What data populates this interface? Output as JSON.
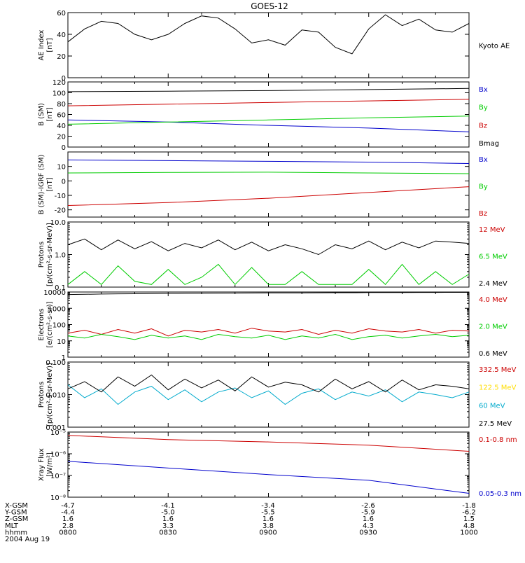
{
  "title": "GOES-12",
  "footer": {
    "rows": [
      {
        "label": "X-GSM",
        "values": [
          "-4.7",
          "-4.1",
          "-3.4",
          "-2.6",
          "-1.8"
        ]
      },
      {
        "label": "Y-GSM",
        "values": [
          "-4.4",
          "-5.0",
          "-5.5",
          "-5.9",
          "-6.2"
        ]
      },
      {
        "label": "Z-GSM",
        "values": [
          "1.6",
          "1.6",
          "1.6",
          "1.6",
          "1.5"
        ]
      },
      {
        "label": "MLT",
        "values": [
          "2.8",
          "3.3",
          "3.8",
          "4.3",
          "4.8"
        ]
      },
      {
        "label": "hhmm",
        "values": [
          "0800",
          "0830",
          "0900",
          "0930",
          "1000"
        ]
      }
    ],
    "date": "2004 Aug 19"
  },
  "colors": {
    "black": "#000000",
    "red": "#cc0000",
    "green": "#00cc00",
    "blue": "#0000cc",
    "cyan": "#00aacc",
    "yellow": "#ffdd00"
  },
  "chart_data": [
    {
      "id": "ae",
      "type": "line",
      "ylabel": [
        "AE Index",
        "[nT]"
      ],
      "ylim": [
        0,
        60
      ],
      "yticks": [
        {
          "v": 0,
          "t": "0"
        },
        {
          "v": 20,
          "t": "20"
        },
        {
          "v": 40,
          "t": "40"
        },
        {
          "v": 60,
          "t": "60"
        }
      ],
      "x": [
        0,
        5,
        10,
        15,
        20,
        25,
        30,
        35,
        40,
        45,
        50,
        55,
        60,
        65,
        70,
        75,
        80,
        85,
        90,
        95,
        100,
        105,
        110,
        115,
        120
      ],
      "series": [
        {
          "name": "Kyoto AE",
          "color": "black",
          "label_color": "black",
          "values": [
            33,
            45,
            52,
            50,
            40,
            35,
            40,
            50,
            57,
            55,
            45,
            32,
            35,
            30,
            44,
            42,
            28,
            22,
            45,
            58,
            48,
            54,
            44,
            42,
            50
          ]
        }
      ]
    },
    {
      "id": "bsm",
      "type": "line",
      "ylabel": [
        "B (SM)",
        "[nT]"
      ],
      "ylim": [
        0,
        120
      ],
      "yticks": [
        {
          "v": 0,
          "t": "0"
        },
        {
          "v": 20,
          "t": "20"
        },
        {
          "v": 40,
          "t": "40"
        },
        {
          "v": 60,
          "t": "60"
        },
        {
          "v": 80,
          "t": "80"
        },
        {
          "v": 100,
          "t": "100"
        },
        {
          "v": 120,
          "t": "120"
        }
      ],
      "x": [
        0,
        30,
        60,
        90,
        120
      ],
      "series": [
        {
          "name": "Bx",
          "color": "blue",
          "label_color": "blue",
          "values": [
            50,
            46,
            40,
            35,
            28
          ]
        },
        {
          "name": "By",
          "color": "green",
          "label_color": "green",
          "values": [
            42,
            46,
            50,
            54,
            57
          ]
        },
        {
          "name": "Bz",
          "color": "red",
          "label_color": "red",
          "values": [
            76,
            79,
            82,
            85,
            88
          ]
        },
        {
          "name": "Bmag",
          "color": "black",
          "label_color": "black",
          "values": [
            102,
            103,
            104,
            106,
            108
          ]
        }
      ]
    },
    {
      "id": "bigrf",
      "type": "line",
      "ylabel": [
        "B (SM)-IGRF (SM)",
        "[nT]"
      ],
      "ylim": [
        -25,
        20
      ],
      "yticks": [
        {
          "v": -20,
          "t": "-20"
        },
        {
          "v": -10,
          "t": "-10"
        },
        {
          "v": 0,
          "t": "0"
        },
        {
          "v": 10,
          "t": "10"
        }
      ],
      "x": [
        0,
        30,
        60,
        90,
        120
      ],
      "series": [
        {
          "name": "Bx",
          "color": "blue",
          "label_color": "blue",
          "values": [
            14.5,
            14,
            13.5,
            13,
            12
          ]
        },
        {
          "name": "By",
          "color": "green",
          "label_color": "green",
          "values": [
            5.5,
            5.8,
            6,
            5.5,
            5
          ]
        },
        {
          "name": "Bz",
          "color": "red",
          "label_color": "red",
          "values": [
            -17,
            -15,
            -12,
            -8,
            -4
          ]
        }
      ]
    },
    {
      "id": "protons1",
      "type": "line",
      "log": true,
      "ylabel": [
        "Protons",
        "[p/(cm²-s-sr-MeV)]"
      ],
      "ylim": [
        0.1,
        10
      ],
      "yticks": [
        {
          "v": 0.1,
          "t": "0.1"
        },
        {
          "v": 1,
          "t": "1.0"
        },
        {
          "v": 10,
          "t": "10.0"
        }
      ],
      "x": [
        0,
        5,
        10,
        15,
        20,
        25,
        30,
        35,
        40,
        45,
        50,
        55,
        60,
        65,
        70,
        75,
        80,
        85,
        90,
        95,
        100,
        105,
        110,
        115,
        120
      ],
      "series": [
        {
          "name": "12 MeV",
          "color": "red",
          "label_color": "red",
          "values": [
            null,
            null,
            null,
            null,
            null,
            null,
            null,
            null,
            null,
            null,
            null,
            null,
            null,
            null,
            null,
            null,
            null,
            null,
            null,
            null,
            null,
            null,
            null,
            null,
            null
          ]
        },
        {
          "name": "6.5 MeV",
          "color": "green",
          "label_color": "green",
          "values": [
            0.12,
            0.3,
            0.12,
            0.45,
            0.15,
            0.12,
            0.35,
            0.12,
            0.2,
            0.5,
            0.12,
            0.4,
            0.12,
            0.12,
            0.3,
            0.12,
            0.12,
            0.12,
            0.35,
            0.12,
            0.5,
            0.12,
            0.3,
            0.12,
            0.25
          ]
        },
        {
          "name": "2.4 MeV",
          "color": "black",
          "label_color": "black",
          "values": [
            2.0,
            3.0,
            1.4,
            2.8,
            1.5,
            2.5,
            1.3,
            2.2,
            1.6,
            2.8,
            1.4,
            2.4,
            1.3,
            2.0,
            1.5,
            1.0,
            2.0,
            1.5,
            2.6,
            1.4,
            2.4,
            1.6,
            2.6,
            2.4,
            2.2
          ]
        }
      ]
    },
    {
      "id": "electrons",
      "type": "line",
      "log": true,
      "ylabel": [
        "Electrons",
        "[e/(cm²-s-sr)]"
      ],
      "ylim": [
        1,
        10000
      ],
      "yticks": [
        {
          "v": 1,
          "t": "1"
        },
        {
          "v": 10,
          "t": "10"
        },
        {
          "v": 100,
          "t": "100"
        },
        {
          "v": 1000,
          "t": "1000"
        },
        {
          "v": 10000,
          "t": "10000"
        }
      ],
      "x": [
        0,
        5,
        10,
        15,
        20,
        25,
        30,
        35,
        40,
        45,
        50,
        55,
        60,
        65,
        70,
        75,
        80,
        85,
        90,
        95,
        100,
        105,
        110,
        115,
        120
      ],
      "series": [
        {
          "name": "4.0 MeV",
          "color": "red",
          "label_color": "red",
          "values": [
            30,
            45,
            25,
            50,
            30,
            55,
            20,
            45,
            35,
            50,
            30,
            60,
            40,
            35,
            50,
            25,
            45,
            30,
            55,
            40,
            35,
            50,
            30,
            45,
            40
          ]
        },
        {
          "name": "2.0 MeV",
          "color": "green",
          "label_color": "green",
          "values": [
            20,
            15,
            25,
            18,
            12,
            22,
            15,
            20,
            12,
            25,
            18,
            15,
            22,
            12,
            20,
            15,
            25,
            12,
            18,
            22,
            15,
            20,
            25,
            18,
            22
          ]
        },
        {
          "name": "0.6 MeV",
          "color": "black",
          "label_color": "black",
          "values": [
            7000,
            7200,
            7500,
            7700,
            7800,
            8000,
            8200,
            8300,
            8400,
            8500,
            8600,
            8700,
            8800,
            8800,
            8900,
            9000,
            9100,
            9100,
            9200,
            9300,
            9300,
            9400,
            9400,
            9500,
            9500
          ]
        }
      ]
    },
    {
      "id": "protons2",
      "type": "line",
      "log": true,
      "ylabel": [
        "Protons",
        "[p/(cm²-s-sr-MeV)]"
      ],
      "ylim": [
        0.001,
        0.1
      ],
      "yticks": [
        {
          "v": 0.001,
          "t": "0.001"
        },
        {
          "v": 0.01,
          "t": "0.010"
        },
        {
          "v": 0.1,
          "t": "0.100"
        }
      ],
      "x": [
        0,
        5,
        10,
        15,
        20,
        25,
        30,
        35,
        40,
        45,
        50,
        55,
        60,
        65,
        70,
        75,
        80,
        85,
        90,
        95,
        100,
        105,
        110,
        115,
        120
      ],
      "series": [
        {
          "name": "332.5 MeV",
          "color": "red",
          "label_color": "red",
          "values": [
            null,
            null,
            null,
            null,
            null,
            null,
            null,
            null,
            null,
            null,
            null,
            null,
            null,
            null,
            null,
            null,
            null,
            null,
            null,
            null,
            null,
            null,
            null,
            null,
            null
          ]
        },
        {
          "name": "122.5 MeV",
          "color": "yellow",
          "label_color": "yellow",
          "values": [
            null,
            null,
            null,
            null,
            null,
            null,
            null,
            null,
            null,
            null,
            null,
            null,
            null,
            null,
            null,
            null,
            null,
            null,
            null,
            null,
            null,
            null,
            null,
            null,
            null
          ]
        },
        {
          "name": "60 MeV",
          "color": "cyan",
          "label_color": "cyan",
          "values": [
            0.02,
            0.008,
            0.015,
            0.005,
            0.012,
            0.018,
            0.007,
            0.014,
            0.006,
            0.012,
            0.016,
            0.008,
            0.013,
            0.005,
            0.011,
            0.015,
            0.007,
            0.012,
            0.009,
            0.014,
            0.006,
            0.012,
            0.01,
            0.008,
            0.012
          ]
        },
        {
          "name": "27.5 MeV",
          "color": "black",
          "label_color": "black",
          "values": [
            0.015,
            0.025,
            0.012,
            0.035,
            0.018,
            0.04,
            0.014,
            0.03,
            0.016,
            0.028,
            0.013,
            0.035,
            0.017,
            0.024,
            0.02,
            0.012,
            0.03,
            0.015,
            0.025,
            0.012,
            0.028,
            0.014,
            0.02,
            0.018,
            0.015
          ]
        }
      ]
    },
    {
      "id": "xray",
      "type": "line",
      "log": true,
      "ylabel": [
        "Xray  Flux",
        "[W/m²]"
      ],
      "ylim": [
        1e-08,
        1e-05
      ],
      "yticks": [
        {
          "v": 1e-08,
          "t": "10⁻⁸"
        },
        {
          "v": 1e-07,
          "t": "10⁻⁷"
        },
        {
          "v": 1e-06,
          "t": "10⁻⁶"
        },
        {
          "v": 1e-05,
          "t": "10⁻⁵"
        }
      ],
      "x": [
        0,
        30,
        60,
        90,
        120
      ],
      "series": [
        {
          "name": "0.1-0.8 nm",
          "color": "red",
          "label_color": "red",
          "values": [
            7e-06,
            4.5e-06,
            3.5e-06,
            2.5e-06,
            1.3e-06
          ]
        },
        {
          "name": "0.05-0.3 nm",
          "color": "blue",
          "label_color": "blue",
          "values": [
            4.5e-07,
            2.2e-07,
            1.1e-07,
            6e-08,
            1.5e-08
          ]
        }
      ]
    }
  ]
}
